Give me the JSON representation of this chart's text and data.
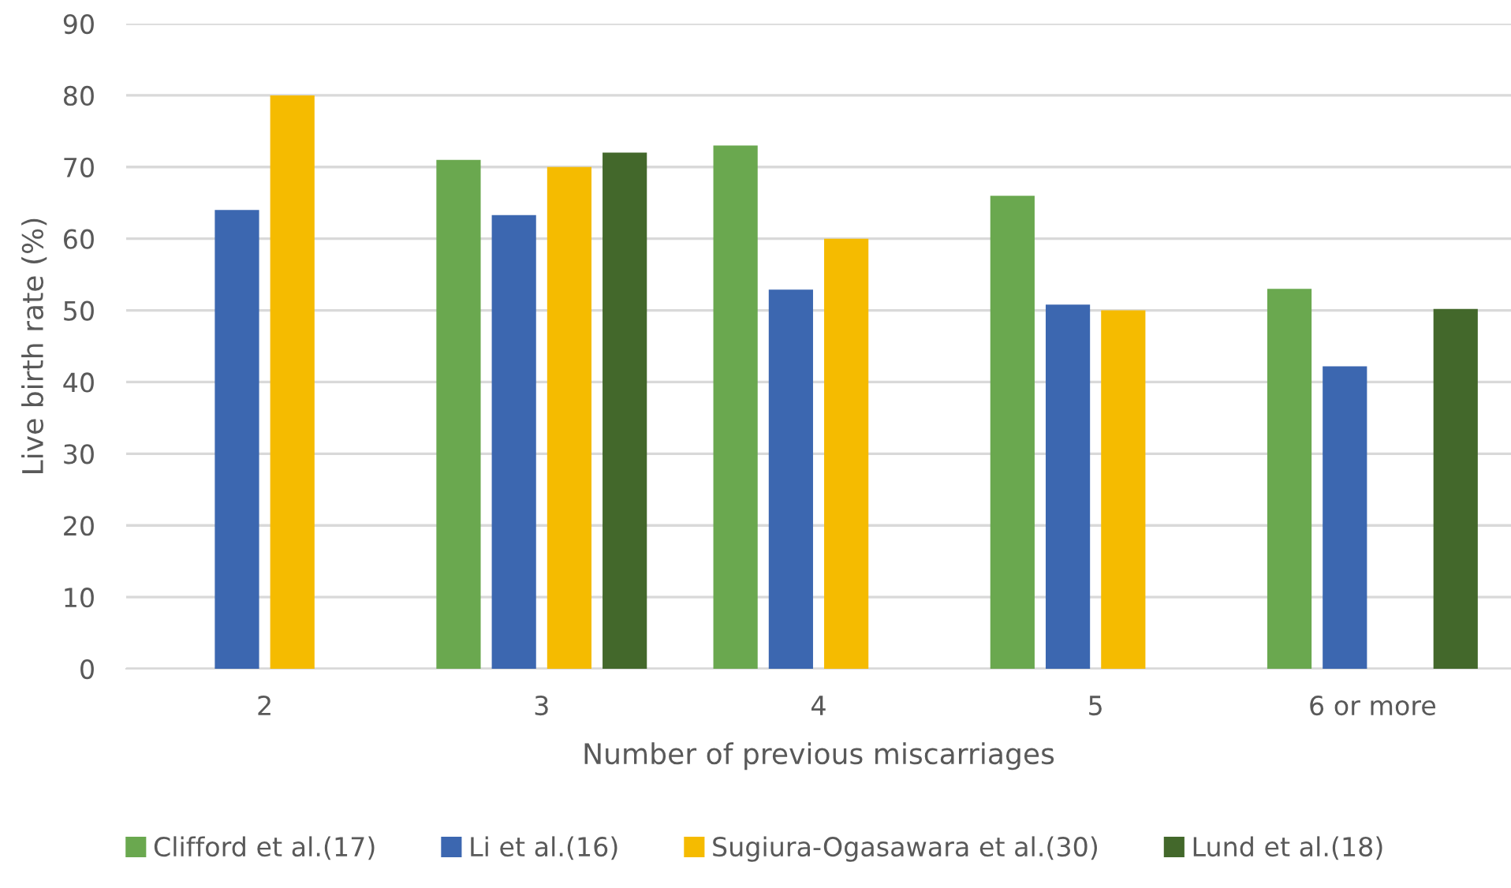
{
  "chart_data": {
    "type": "bar",
    "xlabel": "Number of previous miscarriages",
    "ylabel": "Live birth rate (%)",
    "categories": [
      "2",
      "3",
      "4",
      "5",
      "6 or more"
    ],
    "series": [
      {
        "name": "Clifford et al.(17)",
        "color": "#6aa84f",
        "values": [
          null,
          71,
          73,
          66,
          53
        ]
      },
      {
        "name": "Li et al.(16)",
        "color": "#3c67b0",
        "values": [
          64,
          63.3,
          52.9,
          50.8,
          42.2
        ]
      },
      {
        "name": "Sugiura-Ogasawara et al.(30)",
        "color": "#f5bb00",
        "values": [
          80,
          70,
          60,
          50,
          null
        ]
      },
      {
        "name": "Lund et al.(18)",
        "color": "#43682b",
        "values": [
          null,
          72,
          null,
          null,
          50.2
        ]
      }
    ],
    "ylim": [
      0,
      90
    ],
    "yticks": [
      0,
      10,
      20,
      30,
      40,
      50,
      60,
      70,
      80,
      90
    ],
    "grid": "y",
    "legend": "bottom"
  }
}
